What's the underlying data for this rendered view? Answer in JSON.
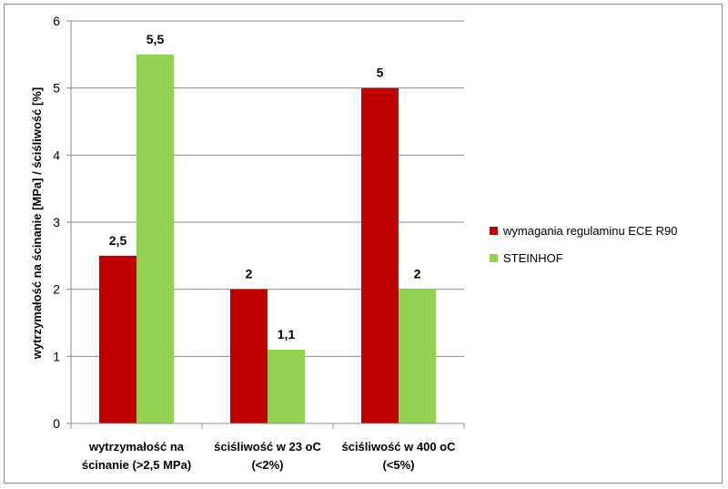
{
  "chart_data": {
    "type": "bar",
    "categories": [
      [
        "wytrzymałość na",
        "ścinanie (>2,5 MPa)"
      ],
      [
        "ściśliwość w 23 oC",
        "(<2%)"
      ],
      [
        "ściśliwość w 400 oC",
        "(<5%)"
      ]
    ],
    "series": [
      {
        "name": "wymagania regulaminu ECE R90",
        "color": "#c00000",
        "values": [
          2.5,
          2,
          5
        ],
        "labels": [
          "2,5",
          "2",
          "5"
        ]
      },
      {
        "name": "STEINHOF",
        "color": "#92d050",
        "values": [
          5.5,
          1.1,
          2
        ],
        "labels": [
          "5,5",
          "1,1",
          "2"
        ]
      }
    ],
    "ylabel": "wytrzymałość na ścinanie [MPa] / ściśliwość  [%]",
    "xlabel": "",
    "ylim": [
      0,
      6
    ],
    "yticks": [
      "0",
      "1",
      "2",
      "3",
      "4",
      "5",
      "6"
    ],
    "grid": true,
    "legend_position": "right"
  }
}
